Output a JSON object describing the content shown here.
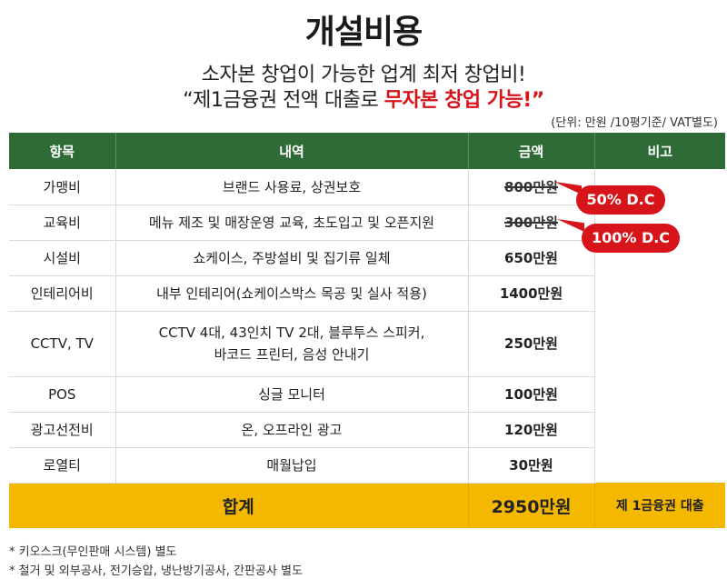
{
  "title": "개설비용",
  "subtitle_line1": "소자본 창업이 가능한 업계 최저 창업비!",
  "subtitle_line2_prefix": "“제1금융권 전액 대출로 ",
  "subtitle_line2_highlight": "무자본 창업 가능!”",
  "unit_note": "(단위: 만원 /10평기준/ VAT별도)",
  "headers": {
    "item": "항목",
    "detail": "내역",
    "amount": "금액",
    "note": "비고"
  },
  "rows": [
    {
      "item": "가맹비",
      "detail": "브랜드 사용료, 상권보호",
      "amount": "800만원"
    },
    {
      "item": "교육비",
      "detail": "메뉴 제조 및 매장운영 교육, 초도입고 및 오픈지원",
      "amount": "300만원"
    },
    {
      "item": "시설비",
      "detail": "쇼케이스, 주방설비 및 집기류 일체",
      "amount": "650만원"
    },
    {
      "item": "인테리어비",
      "detail": "내부 인테리어(쇼케이스박스 목공 및 실사 적용)",
      "amount": "1400만원"
    },
    {
      "item": "CCTV, TV",
      "detail_line1": "CCTV 4대, 43인치 TV 2대, 블루투스 스피커,",
      "detail_line2": "바코드 프린터, 음성 안내기",
      "amount": "250만원"
    },
    {
      "item": "POS",
      "detail": "싱글 모니터",
      "amount": "100만원"
    },
    {
      "item": "광고선전비",
      "detail": "온, 오프라인 광고",
      "amount": "120만원"
    },
    {
      "item": "로열티",
      "detail": "매월납입",
      "amount": "30만원"
    }
  ],
  "total": {
    "label": "합계",
    "amount": "2950만원",
    "note": "제 1금융권 대출"
  },
  "badges": {
    "franchise": "50% D.C",
    "education": "100% D.C"
  },
  "badge_color": "#d7141a",
  "header_color": "#2e6b37",
  "total_color": "#f5b800",
  "footnotes": [
    "* 키오스크(무인판매 시스템) 별도",
    "* 철거 및 외부공사, 전기승압, 냉난방기공사, 간판공사 별도"
  ]
}
